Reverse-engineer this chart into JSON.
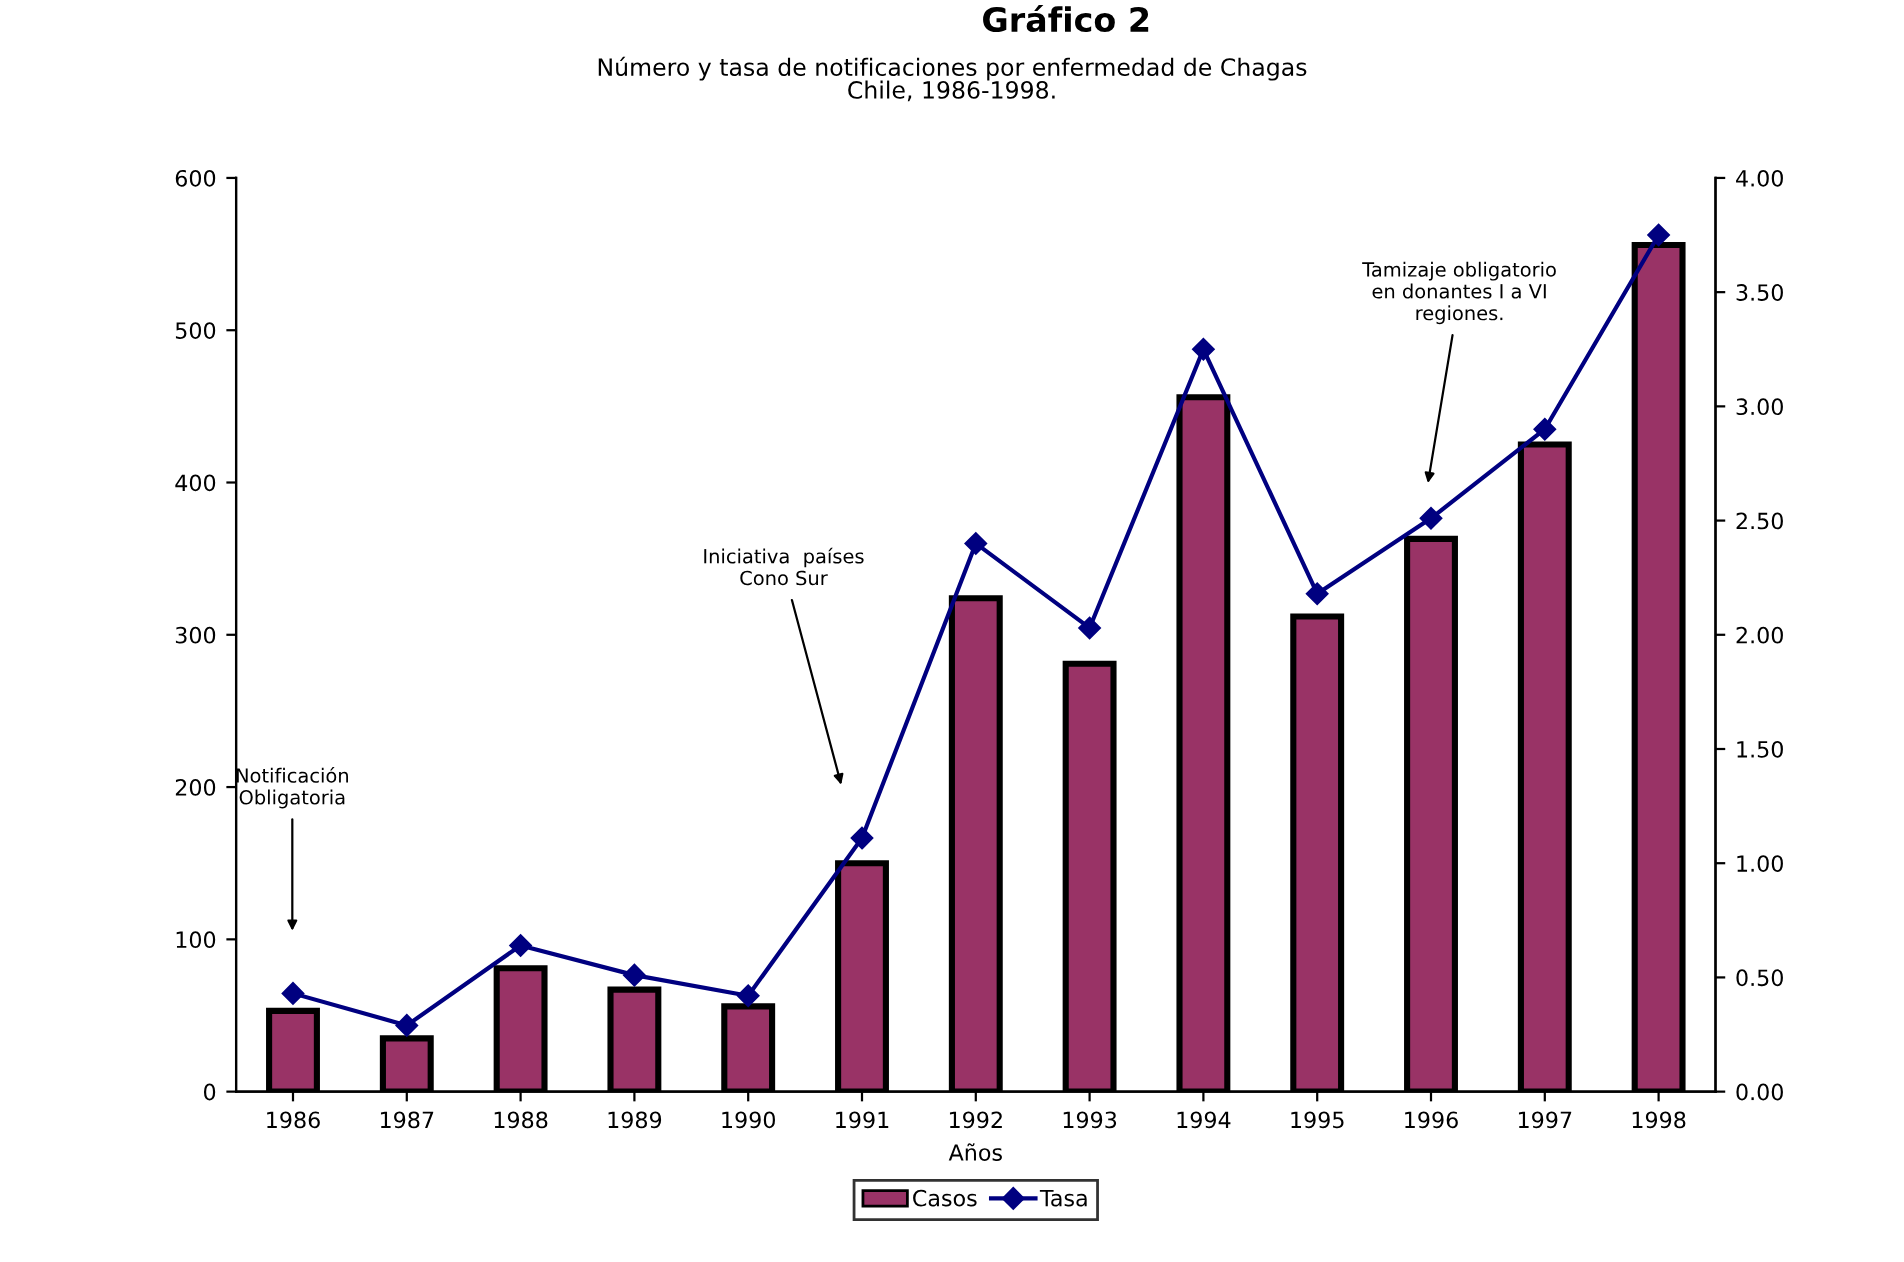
{
  "chart_data": {
    "type": "bar",
    "title": "Gráfico 2",
    "subtitle": "Número y tasa de notificaciones por enfermedad de Chagas\nChile, 1986-1998.",
    "xlabel": "Años",
    "categories": [
      "1986",
      "1987",
      "1988",
      "1989",
      "1990",
      "1991",
      "1992",
      "1993",
      "1994",
      "1995",
      "1996",
      "1997",
      "1998"
    ],
    "series": [
      {
        "name": "Casos",
        "color": "#993366",
        "values": [
          53,
          35,
          81,
          67,
          56,
          150,
          324,
          281,
          456,
          312,
          363,
          425,
          556
        ]
      },
      {
        "name": "Tasa",
        "type": "line",
        "axis": "y2",
        "color": "#000080",
        "marker": "diamond",
        "values": [
          0.43,
          0.29,
          0.64,
          0.51,
          0.42,
          1.11,
          2.4,
          2.03,
          3.25,
          2.18,
          2.51,
          2.9,
          3.75
        ]
      }
    ],
    "ylim": [
      0,
      600
    ],
    "yticks": [
      0,
      100,
      200,
      300,
      400,
      500,
      600
    ],
    "y2lim": [
      0,
      4
    ],
    "y2ticks": [
      {
        "value": 0,
        "label": "0.00"
      },
      {
        "value": 0.5,
        "label": "0.50"
      },
      {
        "value": 1,
        "label": "1.00"
      },
      {
        "value": 1.5,
        "label": "1.50"
      },
      {
        "value": 2,
        "label": "2.00"
      },
      {
        "value": 2.5,
        "label": "2.50"
      },
      {
        "value": 3,
        "label": "3.00"
      },
      {
        "value": 3.5,
        "label": "3.50"
      },
      {
        "value": 4,
        "label": "4.00"
      }
    ],
    "annotations": [
      "Notificación\nObligatoria",
      "Iniciativa  países\nCono Sur",
      "Tamizaje obligatorio\nen donantes I a VI\nregiones."
    ],
    "legend": "bottom",
    "grid": false
  }
}
